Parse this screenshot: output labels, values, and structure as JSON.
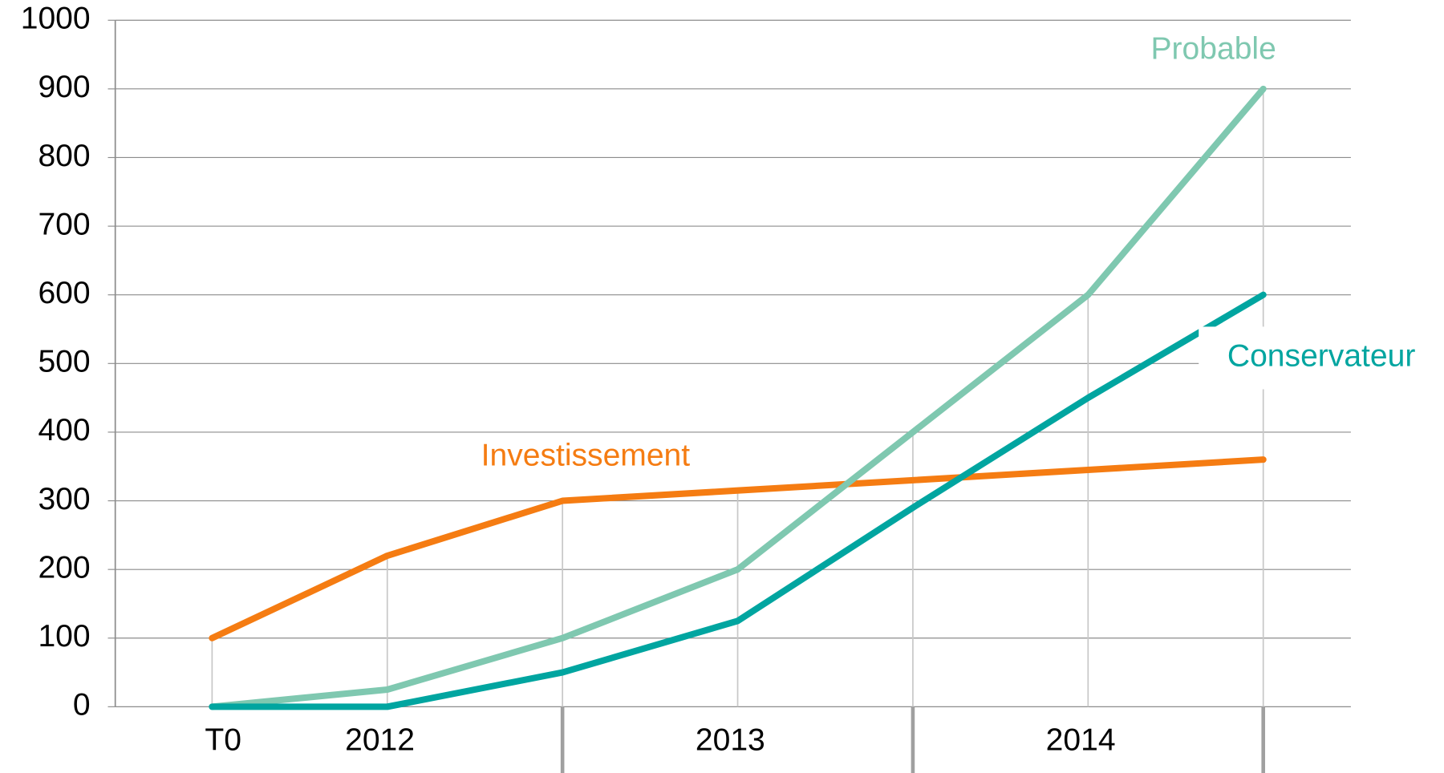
{
  "chart_data": {
    "type": "line",
    "categories": [
      "T0",
      "2012",
      null,
      "2013",
      null,
      "2014",
      null
    ],
    "series": [
      {
        "name": "Investissement",
        "color": "#f57c12",
        "values": [
          100,
          220,
          300,
          315,
          330,
          345,
          360
        ]
      },
      {
        "name": "Probable",
        "color": "#7fc8b0",
        "values": [
          0,
          25,
          100,
          200,
          400,
          600,
          900
        ]
      },
      {
        "name": "Conservateur",
        "color": "#00a5a0",
        "values": [
          0,
          0,
          50,
          125,
          290,
          450,
          600
        ]
      }
    ],
    "ylim": [
      0,
      1000
    ],
    "yticks": [
      0,
      100,
      200,
      300,
      400,
      500,
      600,
      700,
      800,
      900,
      1000
    ],
    "grid": true
  }
}
